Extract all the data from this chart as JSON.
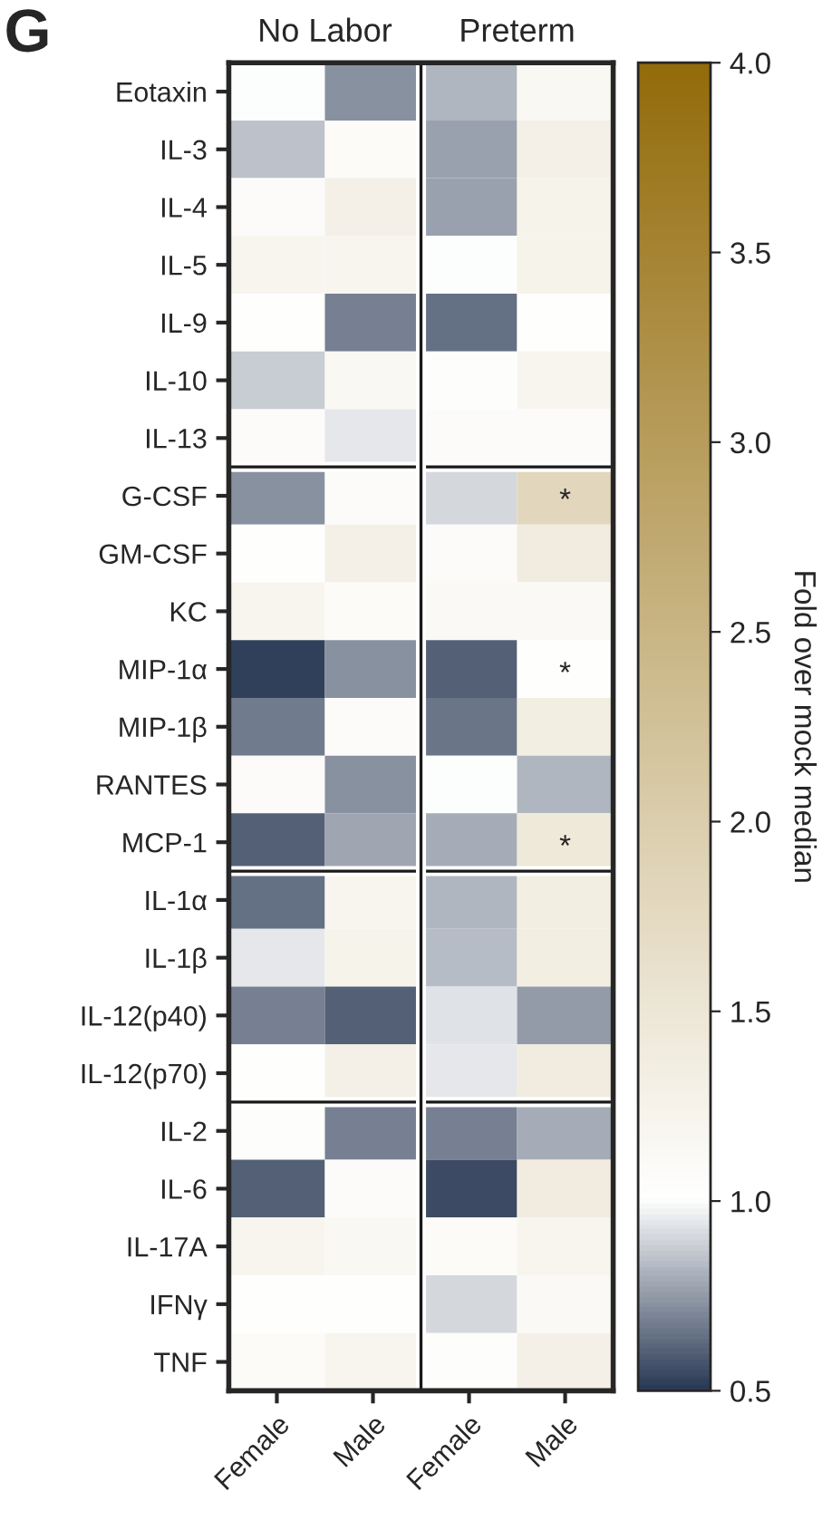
{
  "chart_data": {
    "type": "heatmap",
    "categories": [
      "Female",
      "Male",
      "Female",
      "Male"
    ],
    "y_categories": [
      "Eotaxin",
      "IL-3",
      "IL-4",
      "IL-5",
      "IL-9",
      "IL-10",
      "IL-13",
      "G-CSF",
      "GM-CSF",
      "KC",
      "MIP-1α",
      "MIP-1β",
      "RANTES",
      "MCP-1",
      "IL-1α",
      "IL-1β",
      "IL-12(p40)",
      "IL-12(p70)",
      "IL-2",
      "IL-6",
      "IL-17A",
      "IFNγ",
      "TNF"
    ],
    "cells": [
      [
        1.0,
        0.72,
        0.82,
        1.15
      ],
      [
        0.85,
        1.1,
        0.77,
        1.3
      ],
      [
        1.08,
        1.3,
        0.77,
        1.25
      ],
      [
        1.2,
        1.2,
        1.0,
        1.25
      ],
      [
        1.02,
        0.68,
        0.65,
        1.02
      ],
      [
        0.88,
        1.15,
        1.05,
        1.2
      ],
      [
        1.08,
        0.95,
        1.08,
        1.08
      ],
      [
        0.72,
        1.08,
        0.9,
        1.8
      ],
      [
        1.02,
        1.3,
        1.08,
        1.4
      ],
      [
        1.2,
        1.1,
        1.12,
        1.12
      ],
      [
        0.52,
        0.72,
        0.6,
        1.02
      ],
      [
        0.67,
        1.08,
        0.66,
        1.35
      ],
      [
        1.08,
        0.72,
        1.0,
        0.82
      ],
      [
        0.6,
        0.78,
        0.8,
        1.45
      ],
      [
        0.65,
        1.2,
        0.82,
        1.35
      ],
      [
        0.95,
        1.25,
        0.84,
        1.35
      ],
      [
        0.68,
        0.6,
        0.93,
        0.75
      ],
      [
        1.02,
        1.3,
        0.95,
        1.4
      ],
      [
        1.05,
        0.68,
        0.68,
        0.8
      ],
      [
        0.6,
        1.08,
        0.55,
        1.4
      ],
      [
        1.2,
        1.15,
        1.1,
        1.2
      ],
      [
        1.02,
        1.02,
        0.9,
        1.12
      ],
      [
        1.1,
        1.2,
        1.05,
        1.3
      ]
    ],
    "cell_labels": [
      [
        null,
        null,
        null,
        null
      ],
      [
        null,
        null,
        null,
        null
      ],
      [
        null,
        null,
        null,
        null
      ],
      [
        null,
        null,
        null,
        null
      ],
      [
        null,
        null,
        null,
        null
      ],
      [
        null,
        null,
        null,
        null
      ],
      [
        null,
        null,
        null,
        null
      ],
      [
        null,
        null,
        null,
        "*"
      ],
      [
        null,
        null,
        null,
        null
      ],
      [
        null,
        null,
        null,
        null
      ],
      [
        null,
        null,
        null,
        "*"
      ],
      [
        null,
        null,
        null,
        null
      ],
      [
        null,
        null,
        null,
        null
      ],
      [
        null,
        null,
        null,
        "*"
      ],
      [
        null,
        null,
        null,
        null
      ],
      [
        null,
        null,
        null,
        null
      ],
      [
        null,
        null,
        null,
        null
      ],
      [
        null,
        null,
        null,
        null
      ],
      [
        null,
        null,
        null,
        null
      ],
      [
        null,
        null,
        null,
        null
      ],
      [
        null,
        null,
        null,
        null
      ],
      [
        null,
        null,
        null,
        null
      ],
      [
        null,
        null,
        null,
        null
      ]
    ],
    "clim": [
      0.5,
      4.0
    ],
    "cticks": [
      0.5,
      {
        "value": 1,
        "label": "1.0"
      },
      1.5,
      {
        "value": 2,
        "label": "2.0"
      },
      2.5,
      {
        "value": 3,
        "label": "3.0"
      },
      3.5,
      {
        "value": 4,
        "label": "4.0"
      }
    ],
    "clabel": "Fold over mock median",
    "annotations": [
      "G",
      "No Labor",
      "Preterm"
    ]
  }
}
